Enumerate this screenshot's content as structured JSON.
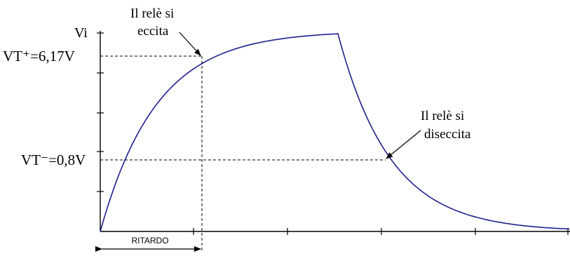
{
  "axis": {
    "y_label": "Vi"
  },
  "levels": {
    "upper_label": "VT⁺=6,17V",
    "lower_label": "VT⁻=0,8V"
  },
  "annotations": {
    "excite_line1": "Il relè si",
    "excite_line2": "eccita",
    "deexcite_line1": "Il relè si",
    "deexcite_line2": "diseccita"
  },
  "delay_label": "RITARDO",
  "colors": {
    "curve": "#1f1f8f",
    "axes": "#000000",
    "background": "#ffffff"
  }
}
